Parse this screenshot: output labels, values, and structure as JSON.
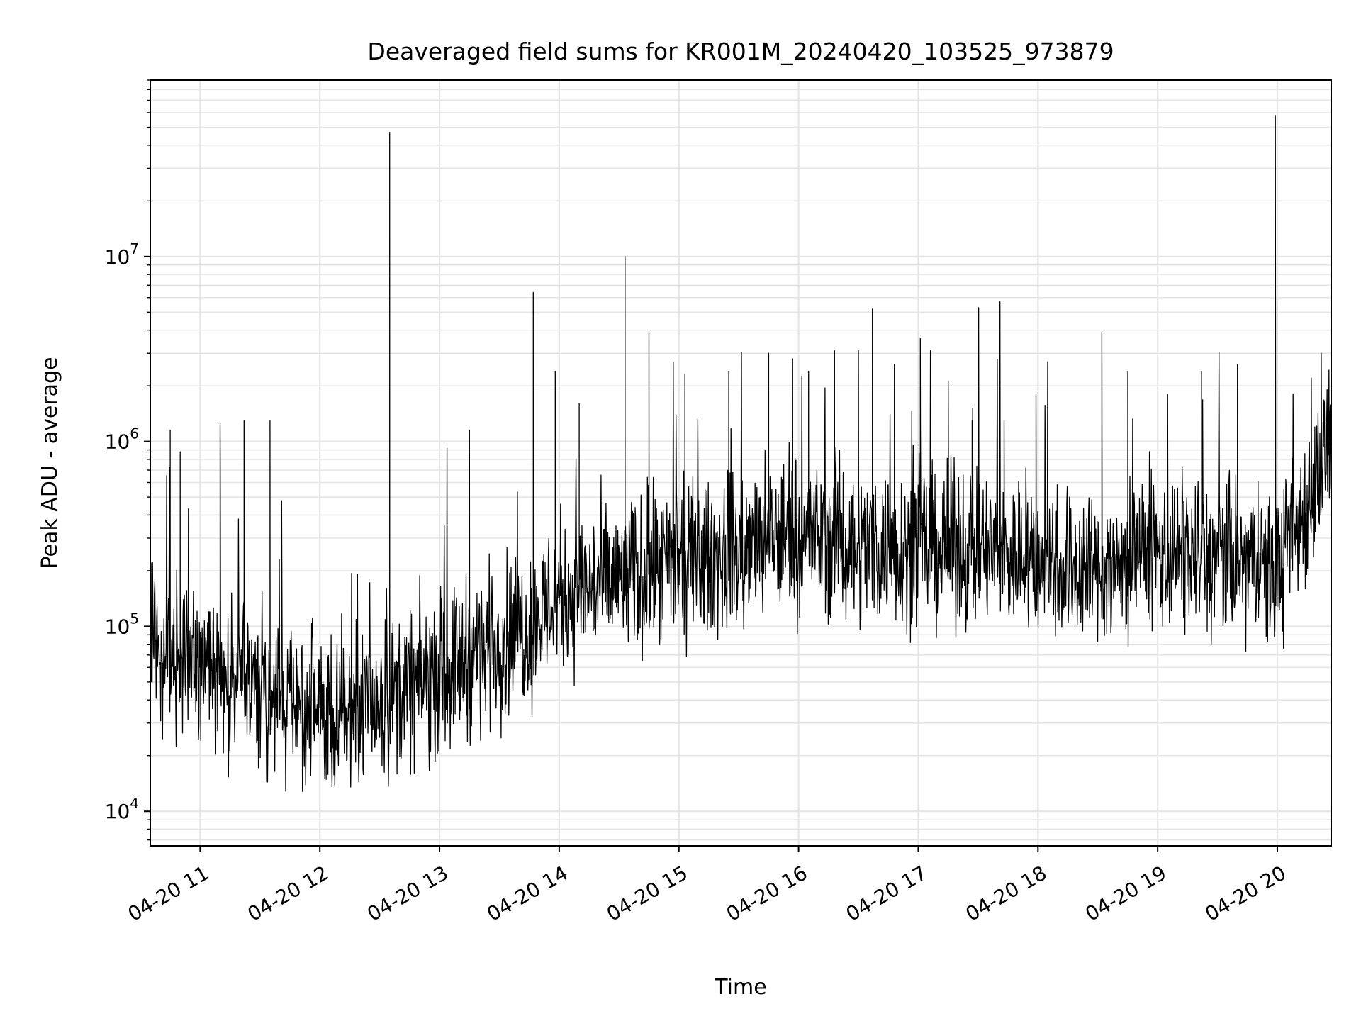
{
  "chart_data": {
    "type": "line",
    "title": "Deaveraged field sums for KR001M_20240420_103525_973879",
    "xlabel": "Time",
    "ylabel": "Peak ADU - average",
    "y_scale": "log",
    "grid": true,
    "line_color": "#000000",
    "grid_color": "#e5e5e5",
    "x_tick_labels": [
      "04-20 11",
      "04-20 12",
      "04-20 13",
      "04-20 14",
      "04-20 15",
      "04-20 16",
      "04-20 17",
      "04-20 18",
      "04-20 19",
      "04-20 20"
    ],
    "x_tick_values": [
      "2024-04-20 11:00",
      "2024-04-20 12:00",
      "2024-04-20 13:00",
      "2024-04-20 14:00",
      "2024-04-20 15:00",
      "2024-04-20 16:00",
      "2024-04-20 17:00",
      "2024-04-20 18:00",
      "2024-04-20 19:00",
      "2024-04-20 20:00"
    ],
    "xlim": [
      "2024-04-20 10:35",
      "2024-04-20 20:27"
    ],
    "y_ticks": [
      10000,
      100000,
      1000000,
      10000000
    ],
    "ylim": [
      6500,
      90000000
    ],
    "trend": {
      "x": [
        "2024-04-20 10:35",
        "2024-04-20 11:00",
        "2024-04-20 11:30",
        "2024-04-20 12:00",
        "2024-04-20 12:30",
        "2024-04-20 13:00",
        "2024-04-20 13:30",
        "2024-04-20 13:45",
        "2024-04-20 14:00",
        "2024-04-20 14:30",
        "2024-04-20 15:00",
        "2024-04-20 15:30",
        "2024-04-20 16:00",
        "2024-04-20 16:30",
        "2024-04-20 17:00",
        "2024-04-20 17:30",
        "2024-04-20 18:00",
        "2024-04-20 18:30",
        "2024-04-20 19:00",
        "2024-04-20 19:30",
        "2024-04-20 20:00",
        "2024-04-20 20:10",
        "2024-04-20 20:27"
      ],
      "y": [
        90000,
        60000,
        45000,
        33000,
        40000,
        55000,
        85000,
        100000,
        150000,
        175000,
        210000,
        250000,
        320000,
        280000,
        270000,
        260000,
        230000,
        200000,
        250000,
        230000,
        200000,
        350000,
        1000000
      ]
    },
    "spikes": {
      "x": [
        "2024-04-20 10:45",
        "2024-04-20 10:50",
        "2024-04-20 11:10",
        "2024-04-20 11:22",
        "2024-04-20 11:35",
        "2024-04-20 12:35",
        "2024-04-20 13:15",
        "2024-04-20 13:47",
        "2024-04-20 13:58",
        "2024-04-20 14:10",
        "2024-04-20 14:33",
        "2024-04-20 14:45",
        "2024-04-20 15:03",
        "2024-04-20 15:25",
        "2024-04-20 15:45",
        "2024-04-20 15:57",
        "2024-04-20 16:05",
        "2024-04-20 16:18",
        "2024-04-20 16:30",
        "2024-04-20 16:37",
        "2024-04-20 16:48",
        "2024-04-20 17:01",
        "2024-04-20 17:15",
        "2024-04-20 17:27",
        "2024-04-20 17:43",
        "2024-04-20 17:59",
        "2024-04-20 18:32",
        "2024-04-20 18:45",
        "2024-04-20 19:05",
        "2024-04-20 19:22",
        "2024-04-20 19:40",
        "2024-04-20 19:59",
        "2024-04-20 20:17",
        "2024-04-20 20:22"
      ],
      "y": [
        1150000,
        880000,
        1250000,
        1300000,
        1300000,
        47000000,
        1150000,
        6400000,
        2400000,
        1600000,
        10000000,
        3900000,
        2300000,
        2400000,
        3000000,
        2800000,
        2400000,
        3100000,
        3100000,
        5200000,
        2600000,
        3600000,
        2100000,
        1300000,
        1300000,
        1800000,
        3900000,
        2400000,
        1800000,
        2400000,
        2600000,
        58000000,
        2200000,
        3000000
      ]
    }
  }
}
